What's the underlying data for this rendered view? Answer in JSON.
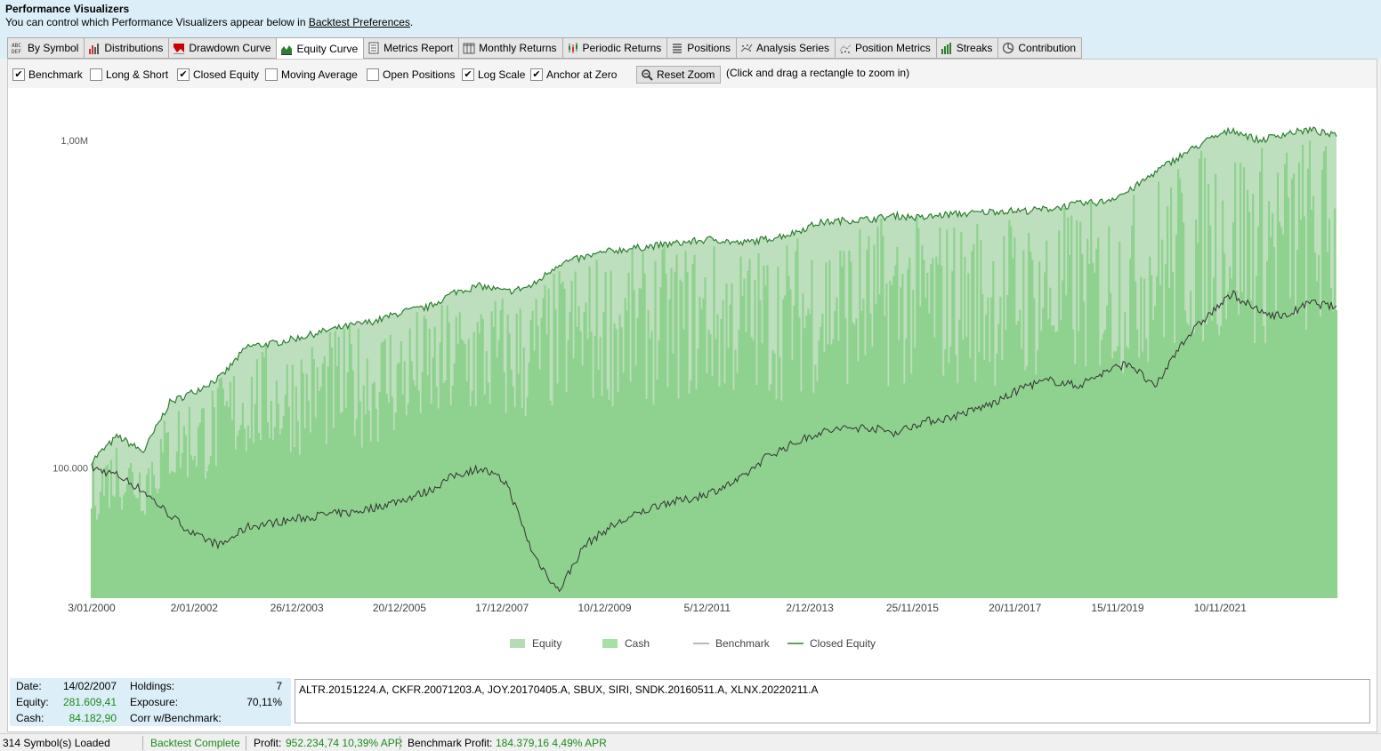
{
  "header": {
    "title": "Performance Visualizers",
    "subtitle_prefix": "You can control which Performance Visualizers appear below in ",
    "subtitle_link": "Backtest Preferences",
    "subtitle_suffix": "."
  },
  "tabs": [
    {
      "label": "By Symbol",
      "icon": "abc-def-icon"
    },
    {
      "label": "Distributions",
      "icon": "bar-chart-icon"
    },
    {
      "label": "Drawdown Curve",
      "icon": "drawdown-icon"
    },
    {
      "label": "Equity Curve",
      "icon": "area-chart-icon",
      "active": true
    },
    {
      "label": "Metrics Report",
      "icon": "document-icon"
    },
    {
      "label": "Monthly Returns",
      "icon": "table-columns-icon"
    },
    {
      "label": "Periodic Returns",
      "icon": "candlestick-icon"
    },
    {
      "label": "Positions",
      "icon": "list-icon"
    },
    {
      "label": "Analysis Series",
      "icon": "scatter-icon"
    },
    {
      "label": "Position Metrics",
      "icon": "dotted-scatter-icon"
    },
    {
      "label": "Streaks",
      "icon": "green-bars-icon"
    },
    {
      "label": "Contribution",
      "icon": "pie-icon"
    }
  ],
  "options": [
    {
      "label": "Benchmark",
      "checked": true
    },
    {
      "label": "Long & Short",
      "checked": false
    },
    {
      "label": "Closed Equity",
      "checked": true
    },
    {
      "label": "Moving Average",
      "checked": false
    },
    {
      "label": "Open Positions",
      "checked": false
    },
    {
      "label": "Log Scale",
      "checked": true
    },
    {
      "label": "Anchor at Zero",
      "checked": true
    }
  ],
  "reset_zoom": "Reset Zoom",
  "zoom_hint": "(Click and drag a rectangle to zoom in)",
  "chart_data": {
    "type": "area",
    "y_scale": "log",
    "y_ticks": [
      "1,00M",
      "100.000"
    ],
    "x_tick_labels": [
      "3/01/2000",
      "2/01/2002",
      "26/12/2003",
      "20/12/2005",
      "17/12/2007",
      "10/12/2009",
      "5/12/2011",
      "2/12/2013",
      "25/11/2015",
      "20/11/2017",
      "15/11/2019",
      "10/11/2021"
    ],
    "x": [
      2000.0,
      2000.5,
      2001.0,
      2001.5,
      2002.0,
      2002.5,
      2003.0,
      2003.5,
      2004.0,
      2004.5,
      2005.0,
      2005.5,
      2006.0,
      2006.5,
      2007.0,
      2007.5,
      2008.0,
      2008.5,
      2009.0,
      2009.5,
      2010.0,
      2010.5,
      2011.0,
      2011.5,
      2012.0,
      2012.5,
      2013.0,
      2013.5,
      2014.0,
      2014.5,
      2015.0,
      2015.5,
      2016.0,
      2016.5,
      2017.0,
      2017.5,
      2018.0,
      2018.5,
      2019.0,
      2019.5,
      2020.0,
      2020.5,
      2021.0,
      2021.5,
      2022.0,
      2022.5,
      2023.0,
      2023.5,
      2024.0
    ],
    "series": [
      {
        "name": "Closed Equity",
        "color": "#2e7d32",
        "values": [
          105000,
          125000,
          112000,
          158000,
          172000,
          190000,
          235000,
          240000,
          250000,
          262000,
          272000,
          282000,
          300000,
          310000,
          345000,
          360000,
          345000,
          360000,
          420000,
          440000,
          460000,
          470000,
          480000,
          490000,
          500000,
          485000,
          500000,
          520000,
          560000,
          570000,
          575000,
          590000,
          580000,
          595000,
          600000,
          610000,
          610000,
          620000,
          640000,
          650000,
          700000,
          800000,
          900000,
          1000000,
          1080000,
          1000000,
          1050000,
          1080000,
          1030000
        ]
      },
      {
        "name": "Benchmark",
        "color": "#333333",
        "values": [
          100000,
          95000,
          85000,
          72000,
          62000,
          58000,
          66000,
          68000,
          70000,
          72000,
          73000,
          76000,
          80000,
          85000,
          95000,
          100000,
          90000,
          55000,
          42000,
          58000,
          66000,
          72000,
          78000,
          80000,
          85000,
          92000,
          108000,
          118000,
          128000,
          132000,
          133000,
          128000,
          138000,
          142000,
          150000,
          160000,
          178000,
          185000,
          178000,
          195000,
          210000,
          175000,
          240000,
          290000,
          340000,
          300000,
          290000,
          320000,
          310000
        ]
      }
    ],
    "legend": [
      {
        "name": "Equity",
        "color": "#b7dbb7"
      },
      {
        "name": "Cash",
        "color": "#a6e0a6"
      },
      {
        "name": "Benchmark",
        "color": "#a0a0a0"
      },
      {
        "name": "Closed Equity",
        "color": "#2e7d32"
      }
    ],
    "legend_position": "bottom"
  },
  "info": {
    "date_label": "Date:",
    "date_value": "14/02/2007",
    "equity_label": "Equity:",
    "equity_value": "281.609,41",
    "cash_label": "Cash:",
    "cash_value": "84.182,90",
    "holdings_label": "Holdings:",
    "holdings_value": "7",
    "exposure_label": "Exposure:",
    "exposure_value": "70,11%",
    "corr_label": "Corr w/Benchmark:"
  },
  "holdings_list": "ALTR.20151224.A, CKFR.20071203.A, JOY.20170405.A, SBUX, SIRI, SNDK.20160511.A, XLNX.20220211.A",
  "status": {
    "symbols_loaded": "314 Symbol(s) Loaded",
    "backtest_status": "Backtest Complete",
    "profit_label": "Profit:",
    "profit_value": "952.234,74 10,39% APR",
    "benchmark_profit_label": "Benchmark Profit:",
    "benchmark_profit_value": "184.379,16 4,49% APR"
  }
}
